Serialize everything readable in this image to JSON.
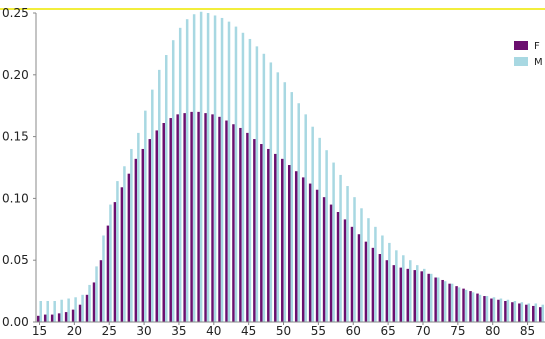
{
  "chart_data": {
    "type": "bar",
    "xlim": [
      14.5,
      87.5
    ],
    "ylim": [
      0,
      0.25
    ],
    "xticks": [
      15,
      20,
      25,
      30,
      35,
      40,
      45,
      50,
      55,
      60,
      65,
      70,
      75,
      80,
      85
    ],
    "yticks": [
      0.0,
      0.05,
      0.1,
      0.15,
      0.2,
      0.25
    ],
    "ytick_labels": [
      "0.00",
      "0.05",
      "0.10",
      "0.15",
      "0.20",
      "0.25"
    ],
    "grid": false,
    "legend_position": "top-right",
    "x": [
      15,
      16,
      17,
      18,
      19,
      20,
      21,
      22,
      23,
      24,
      25,
      26,
      27,
      28,
      29,
      30,
      31,
      32,
      33,
      34,
      35,
      36,
      37,
      38,
      39,
      40,
      41,
      42,
      43,
      44,
      45,
      46,
      47,
      48,
      49,
      50,
      51,
      52,
      53,
      54,
      55,
      56,
      57,
      58,
      59,
      60,
      61,
      62,
      63,
      64,
      65,
      66,
      67,
      68,
      69,
      70,
      71,
      72,
      73,
      74,
      75,
      76,
      77,
      78,
      79,
      80,
      81,
      82,
      83,
      84,
      85,
      86,
      87
    ],
    "series": [
      {
        "name": "F",
        "color": "#6b0f6f",
        "values": [
          0.005,
          0.006,
          0.006,
          0.007,
          0.008,
          0.01,
          0.014,
          0.022,
          0.032,
          0.05,
          0.078,
          0.097,
          0.109,
          0.12,
          0.132,
          0.14,
          0.148,
          0.155,
          0.161,
          0.165,
          0.168,
          0.169,
          0.17,
          0.17,
          0.169,
          0.168,
          0.166,
          0.163,
          0.16,
          0.157,
          0.153,
          0.148,
          0.144,
          0.14,
          0.136,
          0.132,
          0.127,
          0.122,
          0.117,
          0.112,
          0.107,
          0.101,
          0.095,
          0.089,
          0.083,
          0.077,
          0.071,
          0.065,
          0.06,
          0.055,
          0.05,
          0.046,
          0.044,
          0.043,
          0.042,
          0.041,
          0.039,
          0.036,
          0.034,
          0.031,
          0.029,
          0.027,
          0.025,
          0.023,
          0.021,
          0.019,
          0.018,
          0.017,
          0.016,
          0.015,
          0.014,
          0.013,
          0.012
        ]
      },
      {
        "name": "M",
        "color": "#a8d8e2",
        "values": [
          0.017,
          0.017,
          0.017,
          0.018,
          0.019,
          0.02,
          0.022,
          0.03,
          0.045,
          0.07,
          0.095,
          0.114,
          0.126,
          0.14,
          0.153,
          0.171,
          0.188,
          0.204,
          0.216,
          0.228,
          0.238,
          0.245,
          0.249,
          0.251,
          0.25,
          0.248,
          0.246,
          0.243,
          0.239,
          0.234,
          0.229,
          0.223,
          0.217,
          0.21,
          0.202,
          0.194,
          0.186,
          0.177,
          0.168,
          0.158,
          0.149,
          0.139,
          0.129,
          0.119,
          0.11,
          0.101,
          0.092,
          0.084,
          0.077,
          0.07,
          0.064,
          0.058,
          0.054,
          0.05,
          0.046,
          0.043,
          0.039,
          0.036,
          0.033,
          0.031,
          0.028,
          0.026,
          0.024,
          0.022,
          0.021,
          0.02,
          0.019,
          0.018,
          0.017,
          0.016,
          0.015,
          0.015,
          0.014
        ]
      }
    ]
  },
  "legend": [
    {
      "label": "F",
      "color": "#6b0f6f"
    },
    {
      "label": "M",
      "color": "#a8d8e2"
    }
  ],
  "colors": {
    "top_border": "#f2ee3c",
    "axis": "#888888"
  }
}
